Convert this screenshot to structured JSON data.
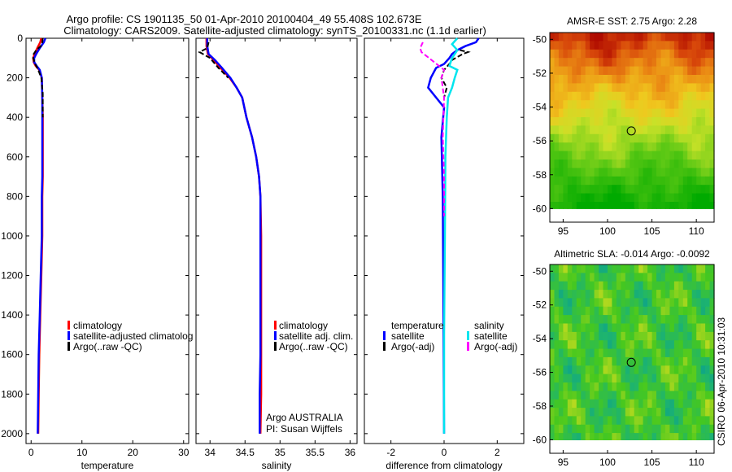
{
  "header": {
    "line1": "Argo profile: CS 1901135_50 01-Apr-2010 20100404_49 55.408S 102.673E",
    "line2": "Climatology: CARS2009. Satellite-adjusted climatology: synTS_20100331.nc (1.1d earlier)"
  },
  "colors": {
    "climatology": "#ff0000",
    "satellite": "#0000ff",
    "argo": "#000000",
    "cyan": "#00e5ee",
    "magenta": "#ff00ff"
  },
  "chart_data": [
    {
      "id": "temperature",
      "type": "line",
      "xlabel": "temperature",
      "ylabel": "",
      "xlim": [
        -1,
        31
      ],
      "ylim": [
        2050,
        0
      ],
      "xticks": [
        0,
        10,
        20,
        30
      ],
      "yticks": [
        0,
        200,
        400,
        600,
        800,
        1000,
        1200,
        1400,
        1600,
        1800,
        2000
      ],
      "legend": [
        "climatology",
        "satellite-adjusted climatolog",
        "Argo(..raw -QC)"
      ],
      "series": [
        {
          "name": "climatology",
          "color": "#ff0000",
          "points": [
            [
              2.0,
              0
            ],
            [
              1.8,
              20
            ],
            [
              1.2,
              50
            ],
            [
              0.7,
              80
            ],
            [
              0.4,
              100
            ],
            [
              0.5,
              120
            ],
            [
              0.9,
              140
            ],
            [
              1.6,
              160
            ],
            [
              2.1,
              200
            ],
            [
              2.2,
              300
            ],
            [
              2.3,
              400
            ],
            [
              2.3,
              500
            ],
            [
              2.3,
              600
            ],
            [
              2.3,
              700
            ],
            [
              2.2,
              800
            ],
            [
              2.2,
              1000
            ],
            [
              2.0,
              1200
            ],
            [
              1.8,
              1400
            ],
            [
              1.6,
              1600
            ],
            [
              1.5,
              1800
            ],
            [
              1.4,
              2000
            ]
          ]
        },
        {
          "name": "satellite",
          "color": "#0000ff",
          "points": [
            [
              2.8,
              0
            ],
            [
              2.5,
              20
            ],
            [
              1.7,
              50
            ],
            [
              1.0,
              80
            ],
            [
              0.6,
              100
            ],
            [
              0.6,
              120
            ],
            [
              1.1,
              140
            ],
            [
              1.7,
              160
            ],
            [
              2.1,
              200
            ],
            [
              2.2,
              300
            ],
            [
              2.2,
              400
            ],
            [
              2.2,
              500
            ],
            [
              2.2,
              600
            ],
            [
              2.2,
              700
            ],
            [
              2.1,
              800
            ],
            [
              2.1,
              1000
            ],
            [
              1.9,
              1200
            ],
            [
              1.7,
              1400
            ],
            [
              1.5,
              1600
            ],
            [
              1.4,
              1800
            ],
            [
              1.3,
              2000
            ]
          ]
        },
        {
          "name": "argo",
          "color": "#000000",
          "points": [
            [
              2.3,
              0
            ],
            [
              2.2,
              20
            ],
            [
              1.9,
              40
            ],
            [
              1.0,
              60
            ],
            [
              0.5,
              80
            ],
            [
              0.4,
              100
            ],
            [
              0.8,
              130
            ],
            [
              1.4,
              160
            ],
            [
              2.0,
              200
            ],
            [
              2.3,
              280
            ],
            [
              2.3,
              400
            ]
          ]
        }
      ]
    },
    {
      "id": "salinity",
      "type": "line",
      "xlabel": "salinity",
      "xlim": [
        33.8,
        36.1
      ],
      "ylim": [
        2050,
        0
      ],
      "xticks": [
        34,
        34.5,
        35,
        35.5,
        36
      ],
      "xticklabels": [
        "34",
        "34.5",
        "35",
        "35.5",
        "36"
      ],
      "legend": [
        "climatology",
        "satellite adj. clim.",
        "Argo(..raw -QC)"
      ],
      "annotations": [
        "Argo AUSTRALIA",
        "PI: Susan Wijffels"
      ],
      "series": [
        {
          "name": "climatology",
          "color": "#ff0000",
          "points": [
            [
              33.95,
              0
            ],
            [
              33.95,
              40
            ],
            [
              33.97,
              80
            ],
            [
              34.05,
              110
            ],
            [
              34.15,
              150
            ],
            [
              34.28,
              200
            ],
            [
              34.38,
              250
            ],
            [
              34.46,
              300
            ],
            [
              34.52,
              400
            ],
            [
              34.6,
              500
            ],
            [
              34.66,
              600
            ],
            [
              34.7,
              700
            ],
            [
              34.72,
              800
            ],
            [
              34.73,
              1000
            ],
            [
              34.73,
              1200
            ],
            [
              34.73,
              1400
            ],
            [
              34.73,
              1600
            ],
            [
              34.73,
              1800
            ],
            [
              34.72,
              2000
            ]
          ]
        },
        {
          "name": "satellite",
          "color": "#0000ff",
          "points": [
            [
              33.96,
              0
            ],
            [
              33.96,
              40
            ],
            [
              33.98,
              80
            ],
            [
              34.07,
              110
            ],
            [
              34.17,
              150
            ],
            [
              34.29,
              200
            ],
            [
              34.38,
              250
            ],
            [
              34.46,
              300
            ],
            [
              34.52,
              400
            ],
            [
              34.6,
              500
            ],
            [
              34.66,
              600
            ],
            [
              34.7,
              700
            ],
            [
              34.72,
              800
            ],
            [
              34.72,
              1000
            ],
            [
              34.72,
              1200
            ],
            [
              34.72,
              1400
            ],
            [
              34.72,
              1600
            ],
            [
              34.71,
              1800
            ],
            [
              34.71,
              2000
            ]
          ]
        },
        {
          "name": "argo",
          "color": "#000000",
          "points": [
            [
              33.98,
              20
            ],
            [
              33.96,
              50
            ],
            [
              33.85,
              70
            ],
            [
              33.9,
              80
            ],
            [
              34.0,
              100
            ],
            [
              34.12,
              150
            ],
            [
              34.26,
              200
            ]
          ]
        }
      ]
    },
    {
      "id": "difference",
      "type": "line",
      "xlabel": "difference from climatology",
      "xlim": [
        -3,
        3
      ],
      "ylim": [
        2050,
        0
      ],
      "xticks": [
        -2,
        0,
        2
      ],
      "legend_temperature": {
        "title": "temperature",
        "items": [
          "satellite",
          "Argo(-adj)"
        ]
      },
      "legend_salinity": {
        "title": "salinity",
        "items": [
          "satellite",
          "Argo(-adj)"
        ]
      },
      "series": [
        {
          "name": "temperature satellite",
          "color": "#0000ff",
          "points": [
            [
              1.3,
              0
            ],
            [
              1.2,
              20
            ],
            [
              0.8,
              40
            ],
            [
              0.5,
              60
            ],
            [
              0.3,
              80
            ],
            [
              0.2,
              100
            ],
            [
              0.0,
              130
            ],
            [
              -0.3,
              150
            ],
            [
              -0.5,
              200
            ],
            [
              -0.6,
              250
            ],
            [
              -0.3,
              300
            ],
            [
              0.0,
              350
            ],
            [
              -0.1,
              500
            ],
            [
              -0.05,
              800
            ],
            [
              -0.03,
              1200
            ],
            [
              0.0,
              2000
            ]
          ]
        },
        {
          "name": "temperature Argo(-adj)",
          "color": "#000000",
          "points": [
            [
              0.6,
              60
            ],
            [
              0.9,
              70
            ],
            [
              0.7,
              80
            ],
            [
              0.5,
              95
            ],
            [
              0.3,
              110
            ],
            [
              0.2,
              130
            ],
            [
              0.0,
              160
            ],
            [
              -0.1,
              200
            ],
            [
              0.1,
              250
            ],
            [
              0.0,
              300
            ]
          ]
        },
        {
          "name": "salinity satellite",
          "color": "#00e5ee",
          "points": [
            [
              0.5,
              0
            ],
            [
              0.3,
              30
            ],
            [
              0.5,
              60
            ],
            [
              0.3,
              100
            ],
            [
              0.2,
              140
            ],
            [
              0.5,
              160
            ],
            [
              0.4,
              200
            ],
            [
              0.3,
              250
            ],
            [
              0.15,
              300
            ],
            [
              0.1,
              400
            ],
            [
              0.05,
              600
            ],
            [
              0.03,
              1000
            ],
            [
              0.0,
              1500
            ],
            [
              0.0,
              2000
            ]
          ]
        },
        {
          "name": "salinity Argo(-adj)",
          "color": "#ff00ff",
          "points": [
            [
              -0.8,
              20
            ],
            [
              -0.9,
              50
            ],
            [
              -0.85,
              70
            ],
            [
              0.0,
              160
            ],
            [
              -0.1,
              200
            ],
            [
              0.0,
              300
            ],
            [
              -0.05,
              500
            ],
            [
              0.0,
              700
            ],
            [
              0.0,
              900
            ]
          ]
        }
      ]
    },
    {
      "id": "amsre",
      "type": "heatmap",
      "title": "AMSR-E SST: 2.75 Argo: 2.28",
      "xlim": [
        93.5,
        112
      ],
      "ylim": [
        -60.8,
        -49.6
      ],
      "xticks": [
        95,
        100,
        105,
        110
      ],
      "yticks": [
        -50,
        -52,
        -54,
        -56,
        -58,
        -60
      ],
      "marker": [
        102.673,
        -55.408
      ],
      "palette": "red-orange-yellow-green"
    },
    {
      "id": "sla",
      "type": "heatmap",
      "title": "Altimetric SLA: -0.014 Argo: -0.0092",
      "xlim": [
        93.5,
        112
      ],
      "ylim": [
        -60.8,
        -49.6
      ],
      "xticks": [
        95,
        100,
        105,
        110
      ],
      "yticks": [
        -50,
        -52,
        -54,
        -56,
        -58,
        -60
      ],
      "marker": [
        102.673,
        -55.408
      ],
      "palette": "green-cyan-yellow"
    }
  ],
  "footer": {
    "stamp": "CSIRO 06-Apr-2010 10:31:03"
  }
}
